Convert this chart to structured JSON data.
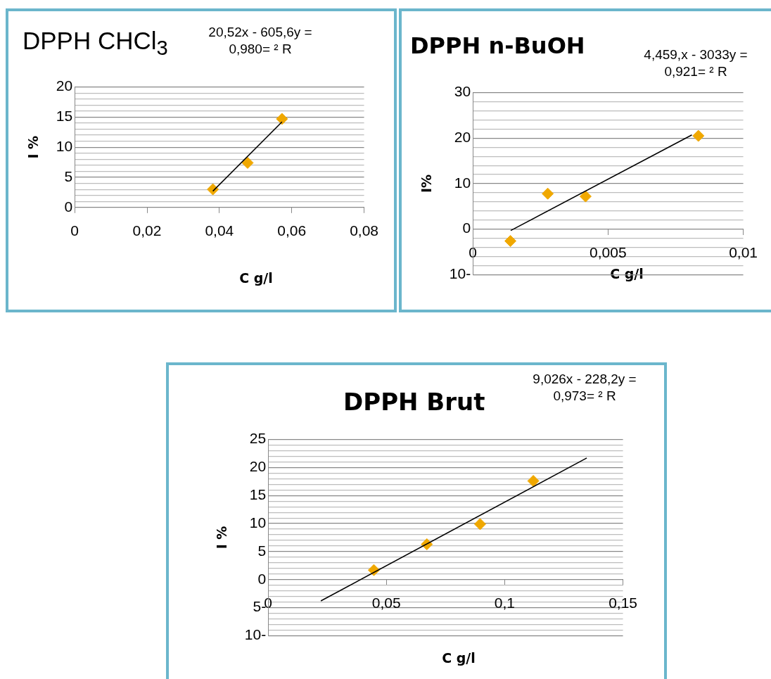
{
  "chart_data": [
    {
      "type": "scatter",
      "title": "DPPH CHCl$_{3}$",
      "xlabel": "C g/l",
      "ylabel": "I %",
      "annotations": [
        "20,52x - 605,6y =",
        "0,980= ² R"
      ],
      "grid": "y",
      "xlim": [
        0,
        0.08
      ],
      "xticks": [
        {
          "value": 0,
          "label": "0"
        },
        {
          "value": 0.02,
          "label": "0,02"
        },
        {
          "value": 0.04,
          "label": "0,04"
        },
        {
          "value": 0.06,
          "label": "0,06"
        },
        {
          "value": 0.08,
          "label": "0,08"
        }
      ],
      "ylim": [
        0,
        20
      ],
      "yticks": [
        0,
        {
          "value": 1,
          "label": null
        },
        {
          "value": 2,
          "label": null
        },
        {
          "value": 3,
          "label": null
        },
        {
          "value": 4,
          "label": null
        },
        5,
        {
          "value": 6,
          "label": null
        },
        {
          "value": 7,
          "label": null
        },
        {
          "value": 8,
          "label": null
        },
        {
          "value": 9,
          "label": null
        },
        10,
        {
          "value": 11,
          "label": null
        },
        {
          "value": 12,
          "label": null
        },
        {
          "value": 13,
          "label": null
        },
        {
          "value": 14,
          "label": null
        },
        15,
        {
          "value": 16,
          "label": null
        },
        {
          "value": 17,
          "label": null
        },
        {
          "value": 18,
          "label": null
        },
        {
          "value": 19,
          "label": null
        },
        20
      ],
      "series": [
        {
          "type": "scatter",
          "marker": "diamond",
          "color": "#f0a800",
          "x": [
            0.0382,
            0.0478,
            0.0573
          ],
          "values": [
            3.0,
            7.4,
            14.7
          ]
        },
        {
          "type": "line",
          "marker": "none",
          "color": "#000000",
          "x": [
            0.0382,
            0.0573
          ],
          "values": [
            2.7,
            14.2
          ]
        }
      ]
    },
    {
      "type": "scatter",
      "title": "DPPH n-BuOH",
      "xlabel": "C g/l",
      "ylabel": "I%",
      "annotations": [
        "4,459,x - 3033y =",
        "0,921= ² R"
      ],
      "grid": "y",
      "xlim": [
        0,
        0.01
      ],
      "xticks": [
        {
          "value": 0,
          "label": "0"
        },
        {
          "value": 0.005,
          "label": "0,005"
        },
        {
          "value": 0.01,
          "label": "0,01"
        }
      ],
      "ylim": [
        -10,
        30
      ],
      "yticks": [
        {
          "value": -10,
          "label": "10-"
        },
        {
          "value": -8,
          "label": null
        },
        {
          "value": -6,
          "label": null
        },
        {
          "value": -4,
          "label": null
        },
        {
          "value": -2,
          "label": null
        },
        0,
        {
          "value": 2,
          "label": null
        },
        {
          "value": 4,
          "label": null
        },
        {
          "value": 6,
          "label": null
        },
        {
          "value": 8,
          "label": null
        },
        10,
        {
          "value": 12,
          "label": null
        },
        {
          "value": 14,
          "label": null
        },
        {
          "value": 16,
          "label": null
        },
        {
          "value": 18,
          "label": null
        },
        20,
        {
          "value": 22,
          "label": null
        },
        {
          "value": 24,
          "label": null
        },
        {
          "value": 26,
          "label": null
        },
        {
          "value": 28,
          "label": null
        },
        30
      ],
      "series": [
        {
          "type": "scatter",
          "marker": "diamond",
          "color": "#f0a800",
          "x": [
            0.00139,
            0.00277,
            0.00417,
            0.00834
          ],
          "values": [
            -2.6,
            7.8,
            7.2,
            20.5
          ]
        },
        {
          "type": "line",
          "marker": "none",
          "color": "#000000",
          "x": [
            0.0014,
            0.0081
          ],
          "values": [
            -0.3,
            20.7
          ]
        }
      ]
    },
    {
      "type": "scatter",
      "title": "DPPH Brut",
      "xlabel": "C g/l",
      "ylabel": "I %",
      "annotations": [
        "9,026x - 228,2y =",
        "0,973= ² R"
      ],
      "grid": "y",
      "xlim": [
        0,
        0.15
      ],
      "xticks": [
        {
          "value": 0,
          "label": "0"
        },
        {
          "value": 0.05,
          "label": "0,05"
        },
        {
          "value": 0.1,
          "label": "0,1"
        },
        {
          "value": 0.15,
          "label": "0,15"
        }
      ],
      "ylim": [
        -10,
        25
      ],
      "yticks": [
        {
          "value": -10,
          "label": "10-"
        },
        {
          "value": -9,
          "label": null
        },
        {
          "value": -8,
          "label": null
        },
        {
          "value": -7,
          "label": null
        },
        {
          "value": -6,
          "label": null
        },
        {
          "value": -5,
          "label": "5-"
        },
        {
          "value": -4,
          "label": null
        },
        {
          "value": -3,
          "label": null
        },
        {
          "value": -2,
          "label": null
        },
        {
          "value": -1,
          "label": null
        },
        0,
        {
          "value": 1,
          "label": null
        },
        {
          "value": 2,
          "label": null
        },
        {
          "value": 3,
          "label": null
        },
        {
          "value": 4,
          "label": null
        },
        5,
        {
          "value": 6,
          "label": null
        },
        {
          "value": 7,
          "label": null
        },
        {
          "value": 8,
          "label": null
        },
        {
          "value": 9,
          "label": null
        },
        10,
        {
          "value": 11,
          "label": null
        },
        {
          "value": 12,
          "label": null
        },
        {
          "value": 13,
          "label": null
        },
        {
          "value": 14,
          "label": null
        },
        15,
        {
          "value": 16,
          "label": null
        },
        {
          "value": 17,
          "label": null
        },
        {
          "value": 18,
          "label": null
        },
        {
          "value": 19,
          "label": null
        },
        20,
        {
          "value": 21,
          "label": null
        },
        {
          "value": 22,
          "label": null
        },
        {
          "value": 23,
          "label": null
        },
        {
          "value": 24,
          "label": null
        },
        25
      ],
      "series": [
        {
          "type": "scatter",
          "marker": "diamond",
          "color": "#f0a800",
          "x": [
            0.0447,
            0.0671,
            0.0896,
            0.1121
          ],
          "values": [
            1.7,
            6.3,
            9.9,
            17.6
          ]
        },
        {
          "type": "line",
          "marker": "none",
          "color": "#000000",
          "x": [
            0.0223,
            0.1347
          ],
          "values": [
            -3.8,
            21.7
          ]
        }
      ]
    }
  ]
}
